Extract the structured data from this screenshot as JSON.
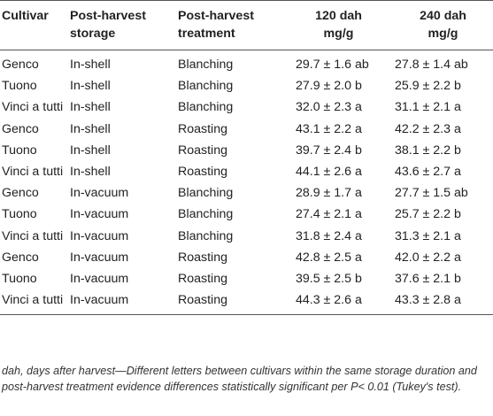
{
  "table": {
    "headers": {
      "cultivar": "Cultivar",
      "storage_line1": "Post-harvest",
      "storage_line2": "storage",
      "treatment_line1": "Post-harvest",
      "treatment_line2": "treatment",
      "dah120_line1": "120 dah",
      "dah120_line2": "mg/g",
      "dah240_line1": "240 dah",
      "dah240_line2": "mg/g"
    },
    "rows": [
      {
        "cultivar": "Genco",
        "storage": "In-shell",
        "treatment": "Blanching",
        "v120": "29.7 ± 1.6 ab",
        "v240": "27.8 ± 1.4 ab"
      },
      {
        "cultivar": "Tuono",
        "storage": "In-shell",
        "treatment": "Blanching",
        "v120": "27.9 ± 2.0 b",
        "v240": "25.9 ± 2.2 b"
      },
      {
        "cultivar": "Vinci a tutti",
        "storage": "In-shell",
        "treatment": "Blanching",
        "v120": "32.0 ± 2.3 a",
        "v240": "31.1 ± 2.1 a"
      },
      {
        "cultivar": "Genco",
        "storage": "In-shell",
        "treatment": "Roasting",
        "v120": "43.1 ± 2.2 a",
        "v240": "42.2 ± 2.3 a"
      },
      {
        "cultivar": "Tuono",
        "storage": "In-shell",
        "treatment": "Roasting",
        "v120": "39.7 ± 2.4 b",
        "v240": "38.1 ± 2.2 b"
      },
      {
        "cultivar": "Vinci a tutti",
        "storage": "In-shell",
        "treatment": "Roasting",
        "v120": "44.1 ± 2.6 a",
        "v240": "43.6 ± 2.7 a"
      },
      {
        "cultivar": "Genco",
        "storage": "In-vacuum",
        "treatment": "Blanching",
        "v120": "28.9 ± 1.7 a",
        "v240": "27.7 ± 1.5 ab"
      },
      {
        "cultivar": "Tuono",
        "storage": "In-vacuum",
        "treatment": "Blanching",
        "v120": "27.4 ± 2.1 a",
        "v240": "25.7 ± 2.2 b"
      },
      {
        "cultivar": "Vinci a tutti",
        "storage": "In-vacuum",
        "treatment": "Blanching",
        "v120": "31.8 ± 2.4 a",
        "v240": "31.3 ± 2.1 a"
      },
      {
        "cultivar": "Genco",
        "storage": "In-vacuum",
        "treatment": "Roasting",
        "v120": "42.8 ± 2.5 a",
        "v240": "42.0 ± 2.2 a"
      },
      {
        "cultivar": "Tuono",
        "storage": "In-vacuum",
        "treatment": "Roasting",
        "v120": "39.5 ± 2.5 b",
        "v240": "37.6 ± 2.1 b"
      },
      {
        "cultivar": "Vinci a tutti",
        "storage": "In-vacuum",
        "treatment": "Roasting",
        "v120": "44.3 ± 2.6 a",
        "v240": "43.3 ± 2.8 a"
      }
    ]
  },
  "footnote": "dah, days after harvest—Different letters between cultivars within the same storage duration and post-harvest treatment evidence differences statistically significant per P< 0.01 (Tukey's test)."
}
